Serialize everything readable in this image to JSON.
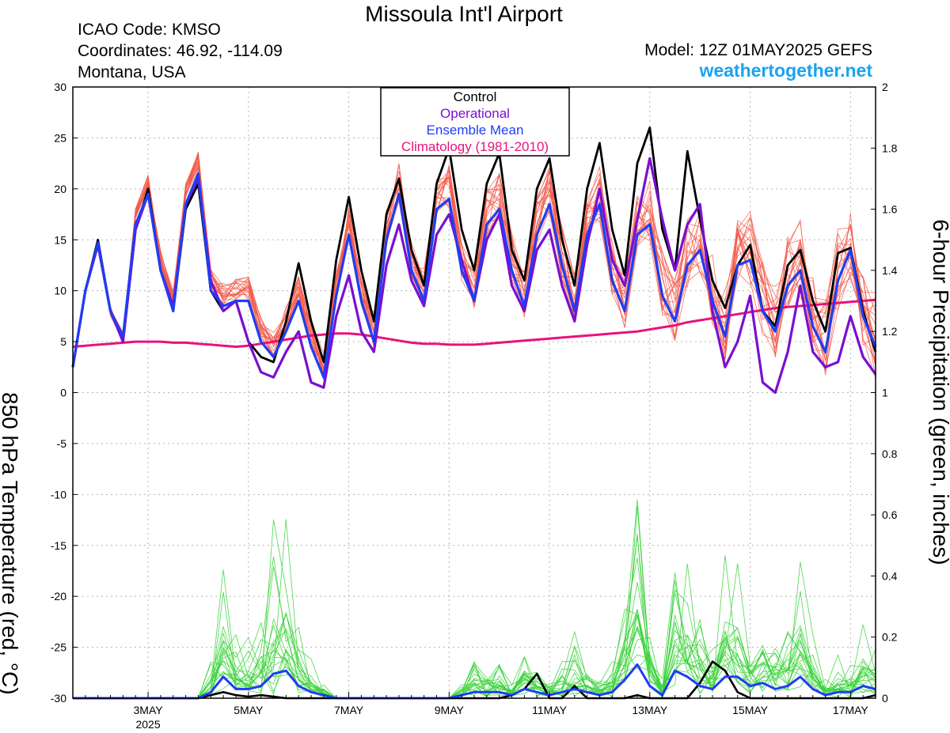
{
  "header": {
    "title": "Missoula Int'l Airport",
    "icao": "ICAO Code: KMSO",
    "coords": "Coordinates: 46.92, -114.09",
    "region": "Montana, USA",
    "model": "Model: 12Z 01MAY2025 GEFS",
    "site": "weathertogether.net"
  },
  "colors": {
    "control": "#000000",
    "operational": "#7a0fd0",
    "mean": "#1f3df5",
    "climatology": "#e8127c",
    "members_temp": "#f25a4a",
    "members_precip": "#3ad33a"
  },
  "chart_data": {
    "type": "line",
    "title": "Missoula Int'l Airport",
    "ylabel": "850 hPa Temperature (red, °C)",
    "ylabel_unit": "C",
    "y2label": "6-hour Precipitation (green, inches)",
    "ylim": [
      -30,
      30
    ],
    "y2lim": [
      0,
      2
    ],
    "yticks": [
      30,
      25,
      20,
      15,
      10,
      5,
      0,
      -5,
      -10,
      -15,
      -20,
      -25,
      -30
    ],
    "y2ticks": [
      2,
      1.8,
      1.6,
      1.4,
      1.2,
      1,
      0.8,
      0.6,
      0.4,
      0.2,
      0
    ],
    "x_start": "2025-05-01T12",
    "x_step_hours": 6,
    "xtick_labels": [
      "3MAY",
      "5MAY",
      "7MAY",
      "9MAY",
      "11MAY",
      "13MAY",
      "15MAY",
      "17MAY"
    ],
    "xtick_positions": [
      6,
      14,
      22,
      30,
      38,
      46,
      54,
      62
    ],
    "year_label": "2025",
    "grid": true,
    "legend_position": "top-center",
    "legend": [
      "Control",
      "Operational",
      "Ensemble Mean",
      "Climatology (1981-2010)"
    ],
    "series": [
      {
        "name": "Control",
        "axis": "temp",
        "values": [
          2.5,
          10.0,
          15.0,
          8.0,
          5.0,
          16.0,
          20.0,
          12.0,
          8.0,
          18.0,
          20.5,
          10.0,
          8.0,
          9.0,
          5.0,
          3.5,
          3.0,
          7.0,
          12.7,
          7.0,
          3.0,
          13.0,
          19.2,
          12.0,
          7.0,
          17.5,
          21.0,
          14.0,
          10.5,
          20.5,
          24.0,
          16.0,
          12.0,
          20.5,
          23.5,
          14.0,
          11.0,
          20.0,
          23.0,
          15.0,
          10.5,
          20.0,
          24.5,
          16.0,
          11.5,
          22.5,
          26.0,
          16.0,
          12.0,
          23.7,
          17.0,
          11.0,
          8.3,
          12.5,
          14.5,
          8.0,
          6.5,
          12.5,
          14.0,
          9.0,
          6.0,
          13.7,
          14.2,
          8.0,
          4.0
        ]
      },
      {
        "name": "Operational",
        "axis": "temp",
        "values": [
          2.5,
          10.0,
          14.5,
          8.0,
          5.0,
          16.0,
          19.5,
          12.0,
          8.5,
          18.5,
          21.0,
          11.0,
          8.0,
          9.0,
          5.0,
          2.0,
          1.5,
          4.0,
          6.0,
          1.0,
          0.5,
          7.5,
          11.5,
          6.0,
          4.0,
          12.5,
          16.5,
          11.0,
          8.5,
          15.5,
          17.5,
          13.0,
          9.0,
          15.0,
          17.5,
          10.5,
          8.0,
          14.0,
          16.0,
          10.5,
          7.0,
          14.5,
          20.0,
          13.0,
          10.5,
          17.0,
          23.0,
          17.0,
          12.0,
          16.5,
          18.5,
          8.0,
          2.5,
          5.0,
          9.5,
          1.0,
          0.0,
          4.0,
          10.5,
          4.0,
          2.5,
          3.0,
          7.5,
          3.5,
          1.8
        ]
      },
      {
        "name": "Ensemble Mean",
        "axis": "temp",
        "values": [
          2.5,
          10.0,
          14.7,
          8.0,
          5.5,
          16.5,
          19.5,
          12.0,
          8.0,
          18.5,
          21.5,
          10.0,
          8.5,
          9.0,
          9.0,
          5.0,
          3.5,
          6.0,
          9.0,
          4.5,
          1.5,
          9.5,
          15.5,
          9.0,
          5.0,
          15.0,
          19.5,
          12.0,
          9.0,
          18.0,
          19.0,
          12.0,
          9.0,
          16.5,
          18.0,
          12.0,
          8.5,
          15.5,
          18.5,
          12.5,
          8.0,
          15.5,
          18.5,
          11.0,
          8.0,
          15.5,
          16.5,
          9.5,
          7.0,
          12.5,
          14.0,
          9.0,
          5.5,
          12.5,
          13.0,
          8.0,
          6.0,
          10.5,
          12.0,
          6.5,
          4.0,
          11.0,
          14.0,
          7.5,
          4.5
        ]
      },
      {
        "name": "Climatology (1981-2010)",
        "axis": "temp",
        "values": [
          4.5,
          4.6,
          4.7,
          4.8,
          4.9,
          5.0,
          5.0,
          5.0,
          4.9,
          4.9,
          4.8,
          4.7,
          4.6,
          4.5,
          4.6,
          4.8,
          5.0,
          5.2,
          5.4,
          5.6,
          5.7,
          5.8,
          5.8,
          5.7,
          5.5,
          5.3,
          5.1,
          4.9,
          4.8,
          4.8,
          4.7,
          4.7,
          4.7,
          4.8,
          4.9,
          5.0,
          5.1,
          5.2,
          5.3,
          5.4,
          5.5,
          5.6,
          5.7,
          5.8,
          5.9,
          6.0,
          6.2,
          6.4,
          6.6,
          6.9,
          7.1,
          7.3,
          7.5,
          7.7,
          7.9,
          8.1,
          8.3,
          8.4,
          8.5,
          8.6,
          8.7,
          8.8,
          8.9,
          9.0,
          9.1
        ]
      },
      {
        "name": "Control",
        "axis": "precip",
        "values": [
          0,
          0,
          0,
          0,
          0,
          0,
          0,
          0,
          0,
          0,
          0,
          0.01,
          0.02,
          0.01,
          0.005,
          0.01,
          0.005,
          0,
          0,
          0,
          0,
          0,
          0,
          0,
          0,
          0,
          0,
          0,
          0,
          0,
          0,
          0,
          0,
          0,
          0,
          0.01,
          0.03,
          0.08,
          0,
          0,
          0.04,
          0,
          0,
          0,
          0,
          0.01,
          0,
          0,
          0,
          0,
          0.05,
          0.12,
          0.09,
          0.02,
          0,
          0,
          0,
          0,
          0,
          0,
          0,
          0,
          0,
          0,
          0.01
        ]
      },
      {
        "name": "Ensemble Mean",
        "axis": "precip",
        "values": [
          0,
          0,
          0,
          0,
          0,
          0,
          0,
          0,
          0,
          0,
          0,
          0.02,
          0.07,
          0.03,
          0.03,
          0.04,
          0.08,
          0.09,
          0.04,
          0.02,
          0.01,
          0,
          0,
          0,
          0,
          0,
          0,
          0,
          0,
          0,
          0,
          0.01,
          0.02,
          0.02,
          0.02,
          0.01,
          0.03,
          0.02,
          0.01,
          0.02,
          0.03,
          0.02,
          0.01,
          0.02,
          0.06,
          0.11,
          0.04,
          0.01,
          0.09,
          0.07,
          0.04,
          0.03,
          0.07,
          0.07,
          0.04,
          0.05,
          0.03,
          0.04,
          0.07,
          0.03,
          0.01,
          0.02,
          0.02,
          0.04,
          0.03
        ]
      }
    ]
  }
}
